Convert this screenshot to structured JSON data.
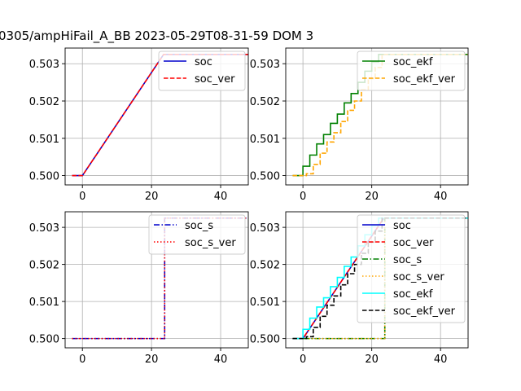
{
  "figure_title": "0305/ampHiFail_A_BB   2023-05-29T08-31-59 DOM 3",
  "chart_data": [
    {
      "type": "line",
      "xlim": [
        -5,
        48
      ],
      "ylim": [
        0.49975,
        0.50342
      ],
      "xticks": [
        0,
        20,
        40
      ],
      "yticks": [
        0.5,
        0.501,
        0.502,
        0.503
      ],
      "grid": true,
      "legend": "upper-right",
      "series": [
        {
          "name": "soc",
          "color": "#0000cc",
          "dash": "solid",
          "x": [
            -3,
            0,
            23.5,
            48
          ],
          "y": [
            0.5,
            0.5,
            0.50325,
            0.50325
          ]
        },
        {
          "name": "soc_ver",
          "color": "#ff0000",
          "dash": "dashed",
          "x": [
            -3,
            0,
            23.5,
            48
          ],
          "y": [
            0.5,
            0.5,
            0.50325,
            0.50325
          ]
        }
      ]
    },
    {
      "type": "line",
      "xlim": [
        -5,
        48
      ],
      "ylim": [
        0.49975,
        0.50342
      ],
      "xticks": [
        0,
        20,
        40
      ],
      "yticks": [
        0.5,
        0.501,
        0.502,
        0.503
      ],
      "grid": true,
      "legend": "upper-right",
      "series": [
        {
          "name": "soc_ekf",
          "color": "#008000",
          "dash": "solid",
          "step": true,
          "x": [
            -3,
            0,
            2,
            4,
            6,
            8,
            10,
            12,
            14,
            16,
            18,
            20,
            22,
            48
          ],
          "y": [
            0.5,
            0.50025,
            0.50055,
            0.50085,
            0.5011,
            0.5014,
            0.50165,
            0.50195,
            0.5022,
            0.5025,
            0.5028,
            0.50305,
            0.50325,
            0.50325
          ]
        },
        {
          "name": "soc_ekf_ver",
          "color": "#ffa500",
          "dash": "dashed",
          "step": true,
          "x": [
            -3,
            1,
            3,
            5,
            7,
            9,
            11,
            13,
            15,
            17,
            19,
            21,
            23,
            48
          ],
          "y": [
            0.5,
            0.50005,
            0.5003,
            0.5006,
            0.5009,
            0.50115,
            0.50145,
            0.50175,
            0.502,
            0.5023,
            0.5026,
            0.5029,
            0.50325,
            0.50325
          ]
        }
      ]
    },
    {
      "type": "line",
      "xlim": [
        -5,
        48
      ],
      "ylim": [
        0.49975,
        0.50342
      ],
      "xticks": [
        0,
        20,
        40
      ],
      "yticks": [
        0.5,
        0.501,
        0.502,
        0.503
      ],
      "grid": true,
      "legend": "upper-right",
      "series": [
        {
          "name": "soc_s",
          "color": "#0000cc",
          "dash": "dashdot",
          "x": [
            -3,
            23.8,
            23.8,
            48
          ],
          "y": [
            0.5,
            0.5,
            0.50325,
            0.50325
          ]
        },
        {
          "name": "soc_s_ver",
          "color": "#ff0000",
          "dash": "dotted",
          "x": [
            -3,
            23.8,
            23.8,
            48
          ],
          "y": [
            0.5,
            0.5,
            0.50325,
            0.50325
          ]
        }
      ]
    },
    {
      "type": "line",
      "xlim": [
        -5,
        48
      ],
      "ylim": [
        0.49975,
        0.50342
      ],
      "xticks": [
        0,
        20,
        40
      ],
      "yticks": [
        0.5,
        0.501,
        0.502,
        0.503
      ],
      "grid": true,
      "legend": "upper-right",
      "series": [
        {
          "name": "soc",
          "color": "#0000cc",
          "dash": "solid",
          "x": [
            -3,
            0,
            23.5,
            48
          ],
          "y": [
            0.5,
            0.5,
            0.50325,
            0.50325
          ]
        },
        {
          "name": "soc_ver",
          "color": "#ff0000",
          "dash": "dashed",
          "x": [
            -3,
            0,
            23.5,
            48
          ],
          "y": [
            0.5,
            0.5,
            0.50325,
            0.50325
          ]
        },
        {
          "name": "soc_s",
          "color": "#008000",
          "dash": "dashdot",
          "x": [
            -3,
            23.8,
            23.8,
            48
          ],
          "y": [
            0.5,
            0.5,
            0.50325,
            0.50325
          ]
        },
        {
          "name": "soc_s_ver",
          "color": "#ffa500",
          "dash": "dotted",
          "x": [
            -3,
            23.8,
            23.8,
            48
          ],
          "y": [
            0.5,
            0.5,
            0.50325,
            0.50325
          ]
        },
        {
          "name": "soc_ekf",
          "color": "#00ffff",
          "dash": "solid",
          "step": true,
          "x": [
            -3,
            0,
            2,
            4,
            6,
            8,
            10,
            12,
            14,
            16,
            18,
            20,
            22,
            48
          ],
          "y": [
            0.5,
            0.50025,
            0.50055,
            0.50085,
            0.5011,
            0.5014,
            0.50165,
            0.50195,
            0.5022,
            0.5025,
            0.5028,
            0.50305,
            0.50325,
            0.50325
          ]
        },
        {
          "name": "soc_ekf_ver",
          "color": "#000000",
          "dash": "dashed",
          "step": true,
          "x": [
            -3,
            1,
            3,
            5,
            7,
            9,
            11,
            13,
            15,
            17,
            19,
            21,
            23,
            48
          ],
          "y": [
            0.5,
            0.50005,
            0.5003,
            0.5006,
            0.5009,
            0.50115,
            0.50145,
            0.50175,
            0.502,
            0.5023,
            0.5026,
            0.5029,
            0.50325,
            0.50325
          ]
        }
      ]
    }
  ]
}
